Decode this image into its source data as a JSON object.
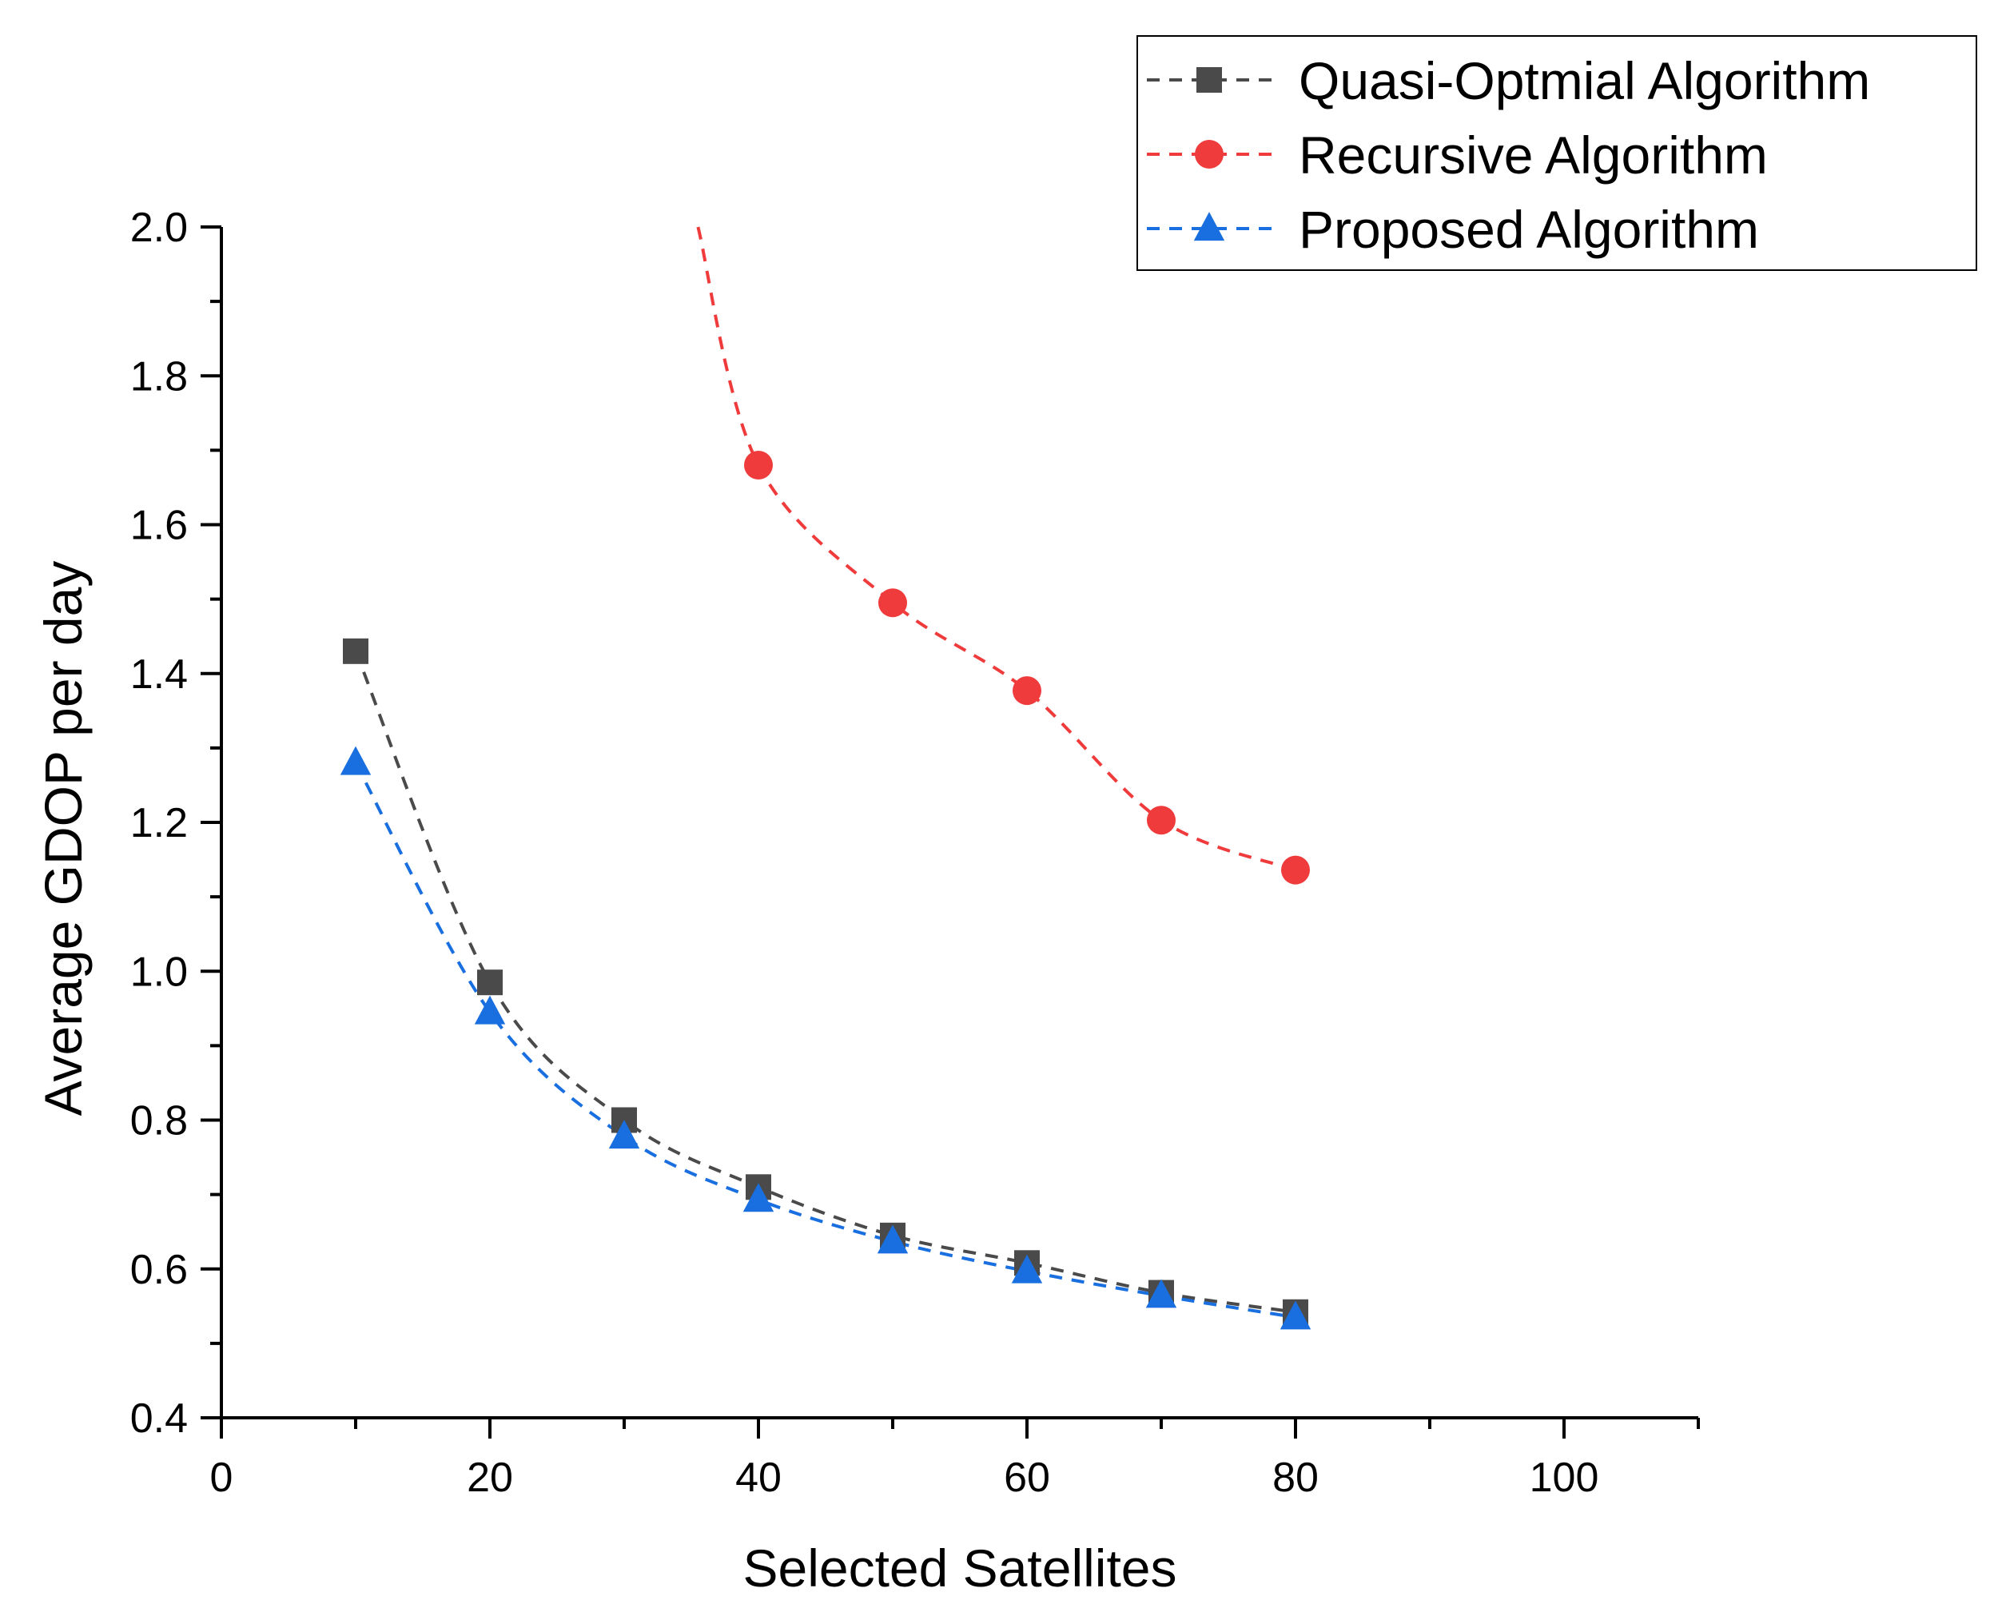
{
  "chart_data": {
    "type": "line",
    "title": "",
    "xlabel": "Selected Satellites",
    "ylabel": "Average GDOP per day",
    "xlim": [
      0,
      110
    ],
    "ylim": [
      0.4,
      2.0
    ],
    "x_ticks": [
      0,
      20,
      40,
      60,
      80,
      100
    ],
    "y_ticks": [
      0.4,
      0.6,
      0.8,
      1.0,
      1.2,
      1.4,
      1.6,
      1.8,
      2.0
    ],
    "x_tick_labels": [
      "0",
      "20",
      "40",
      "60",
      "80",
      "100"
    ],
    "y_tick_labels": [
      "0.4",
      "0.6",
      "0.8",
      "1.0",
      "1.2",
      "1.4",
      "1.6",
      "1.8",
      "2.0"
    ],
    "grid": false,
    "legend_position": "top-right",
    "series": [
      {
        "name": "Quasi-Optmial Algorithm",
        "color": "#4a4a4a",
        "marker": "square",
        "x": [
          10,
          20,
          30,
          40,
          50,
          60,
          70,
          80
        ],
        "values": [
          1.43,
          0.985,
          0.8,
          0.71,
          0.645,
          0.608,
          0.568,
          0.542
        ]
      },
      {
        "name": "Recursive Algorithm",
        "color": "#ef3b3b",
        "marker": "circle",
        "x": [
          40,
          50,
          60,
          70,
          80
        ],
        "values": [
          1.68,
          1.495,
          1.377,
          1.203,
          1.136
        ],
        "curve_start": {
          "x": 35.5,
          "y": 2.0
        }
      },
      {
        "name": "Proposed Algorithm",
        "color": "#1a6fe0",
        "marker": "triangle",
        "x": [
          10,
          20,
          30,
          40,
          50,
          60,
          70,
          80
        ],
        "values": [
          1.28,
          0.945,
          0.778,
          0.693,
          0.637,
          0.597,
          0.564,
          0.535
        ]
      }
    ]
  }
}
